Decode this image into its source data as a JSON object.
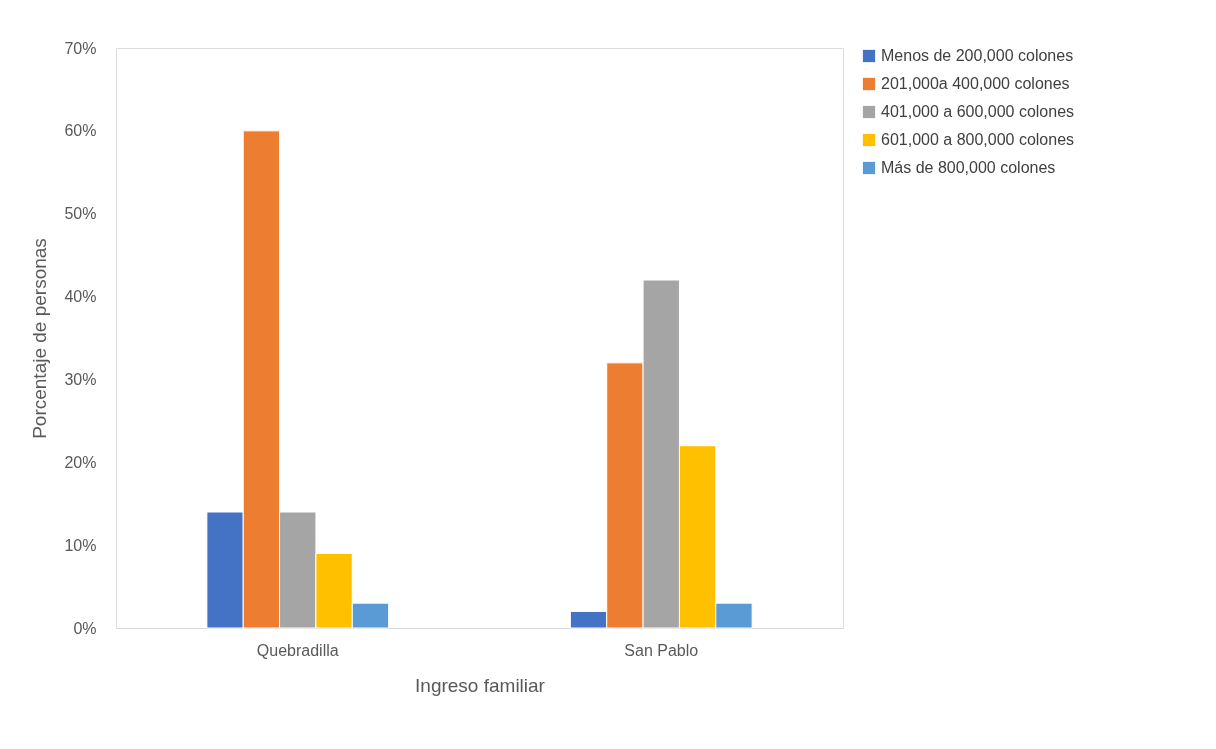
{
  "chart_data": {
    "type": "bar",
    "xlabel": "Ingreso familiar",
    "ylabel": "Porcentaje de personas",
    "categories": [
      "Quebradilla",
      "San Pablo"
    ],
    "series": [
      {
        "name": "Menos de 200,000 colones",
        "color": "#4472c4",
        "values": [
          14,
          2
        ]
      },
      {
        "name": "201,000a 400,000 colones",
        "color": "#ed7d31",
        "values": [
          60,
          32
        ]
      },
      {
        "name": "401,000 a 600,000 colones",
        "color": "#a5a5a5",
        "values": [
          14,
          42
        ]
      },
      {
        "name": "601,000 a 800,000 colones",
        "color": "#ffc000",
        "values": [
          9,
          22
        ]
      },
      {
        "name": "Más de 800,000 colones",
        "color": "#5b9bd5",
        "values": [
          3,
          3
        ]
      }
    ],
    "ylim": [
      0,
      70
    ],
    "yticks": [
      {
        "value": 0,
        "label": "0%"
      },
      {
        "value": 10,
        "label": "10%"
      },
      {
        "value": 20,
        "label": "20%"
      },
      {
        "value": 30,
        "label": "30%"
      },
      {
        "value": 40,
        "label": "40%"
      },
      {
        "value": 50,
        "label": "50%"
      },
      {
        "value": 60,
        "label": "60%"
      },
      {
        "value": 70,
        "label": "70%"
      }
    ],
    "grid": false,
    "legend": "right"
  }
}
